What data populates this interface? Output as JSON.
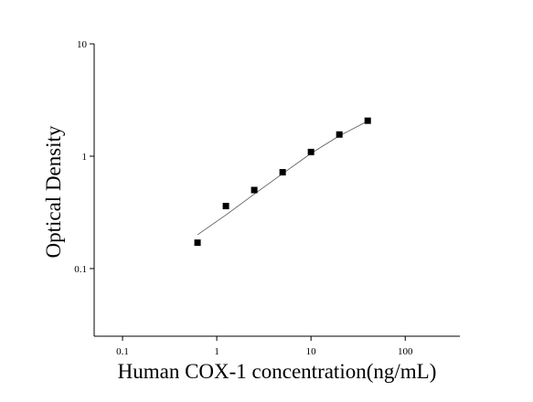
{
  "chart_data": {
    "type": "scatter",
    "x_label": "Human COX-1 concentration(ng/mL)",
    "y_label": "Optical Density",
    "x": [
      0.625,
      1.25,
      2.5,
      5,
      10,
      20,
      40
    ],
    "values": [
      0.17,
      0.36,
      0.5,
      0.72,
      1.09,
      1.56,
      2.07
    ],
    "fit_values": [
      0.2,
      0.3,
      0.46,
      0.7,
      1.06,
      1.52,
      2.05
    ],
    "color": "#000000",
    "xlim": [
      0.05,
      380
    ],
    "ylim": [
      0.025,
      10
    ],
    "xticks": [
      0.1,
      1,
      10,
      100
    ],
    "yticks": [
      0.1,
      1,
      10
    ],
    "xlog": true,
    "ylog": true
  }
}
